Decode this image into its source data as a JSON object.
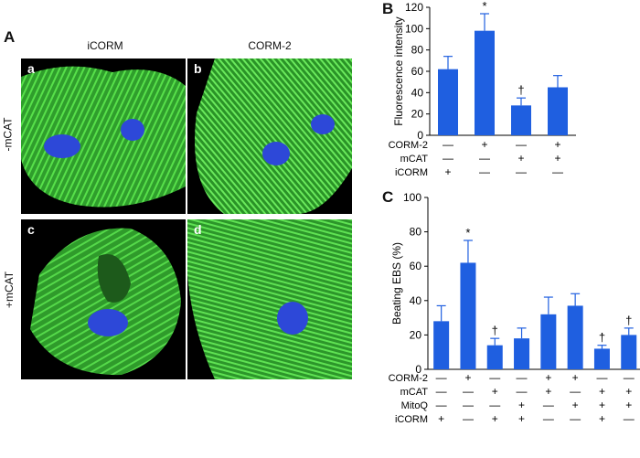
{
  "panel_a": {
    "letter": "A",
    "col_labels": [
      "iCORM",
      "CORM-2"
    ],
    "row_labels": [
      "-mCAT",
      "+mCAT"
    ],
    "images": [
      {
        "label": "a",
        "description_icon": "cell-fluorescence-image"
      },
      {
        "label": "b",
        "description_icon": "cell-fluorescence-image"
      },
      {
        "label": "c",
        "description_icon": "cell-fluorescence-image"
      },
      {
        "label": "d",
        "description_icon": "cell-fluorescence-image"
      }
    ]
  },
  "colors": {
    "bar": "#1f5fe0",
    "cell": "#3fd23a",
    "nucleus": "#2d48d8"
  },
  "chart_data": [
    {
      "letter": "B",
      "type": "bar",
      "ylabel": "Fluorescence intensity",
      "ylim": [
        0,
        120
      ],
      "yticks": [
        "0",
        "20",
        "40",
        "60",
        "80",
        "100",
        "120"
      ],
      "values": [
        62,
        98,
        28,
        45
      ],
      "errors": [
        12,
        16,
        7,
        11
      ],
      "annotations": [
        "",
        "*",
        "†",
        ""
      ],
      "rows": [
        {
          "name": "CORM-2",
          "signs": [
            "—",
            "+",
            "—",
            "+"
          ]
        },
        {
          "name": "mCAT",
          "signs": [
            "—",
            "—",
            "+",
            "+"
          ]
        },
        {
          "name": "iCORM",
          "signs": [
            "+",
            "—",
            "—",
            "—"
          ]
        }
      ]
    },
    {
      "letter": "C",
      "type": "bar",
      "ylabel": "Beating EBS (%)",
      "ylim": [
        0,
        100
      ],
      "yticks": [
        "0",
        "20",
        "40",
        "60",
        "80",
        "100"
      ],
      "values": [
        28,
        62,
        14,
        18,
        32,
        37,
        12,
        20
      ],
      "errors": [
        9,
        13,
        4,
        6,
        10,
        7,
        2,
        4
      ],
      "annotations": [
        "",
        "*",
        "†",
        "",
        "",
        "",
        "†",
        "†"
      ],
      "rows": [
        {
          "name": "CORM-2",
          "signs": [
            "—",
            "+",
            "—",
            "—",
            "+",
            "+",
            "—",
            "—"
          ]
        },
        {
          "name": "mCAT",
          "signs": [
            "—",
            "—",
            "+",
            "—",
            "+",
            "—",
            "+",
            "+"
          ]
        },
        {
          "name": "MitoQ",
          "signs": [
            "—",
            "—",
            "—",
            "+",
            "—",
            "+",
            "+",
            "+"
          ]
        },
        {
          "name": "iCORM",
          "signs": [
            "+",
            "—",
            "+",
            "+",
            "—",
            "—",
            "+",
            "—"
          ]
        }
      ]
    }
  ]
}
